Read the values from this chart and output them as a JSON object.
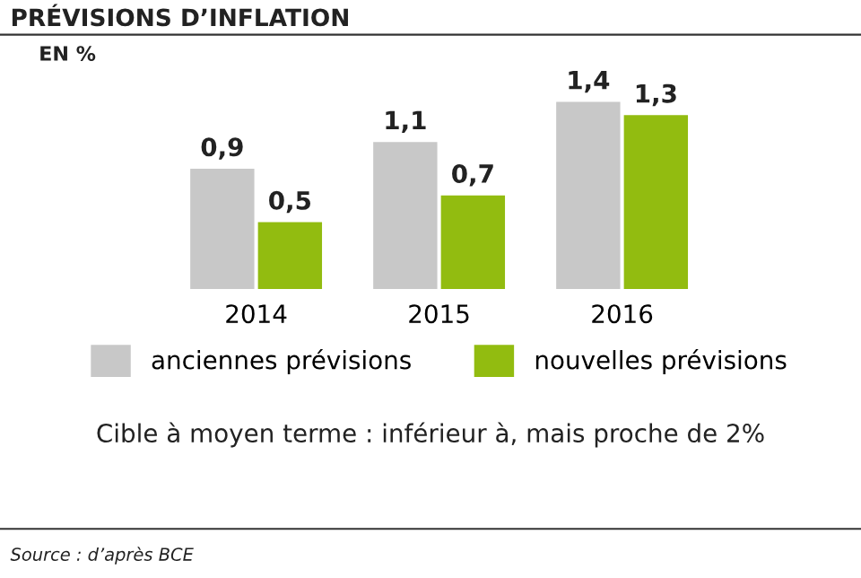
{
  "chart_data": {
    "type": "bar",
    "title": "PRÉVISIONS D’INFLATION",
    "subtitle": "EN %",
    "categories": [
      "2014",
      "2015",
      "2016"
    ],
    "series": [
      {
        "name": "anciennes prévisions",
        "color": "#c8c8c8",
        "values": [
          0.9,
          1.1,
          1.4
        ],
        "value_labels": [
          "0,9",
          "1,1",
          "1,4"
        ]
      },
      {
        "name": "nouvelles prévisions",
        "color": "#92bc10",
        "values": [
          0.5,
          0.7,
          1.3
        ],
        "value_labels": [
          "0,5",
          "0,7",
          "1,3"
        ]
      }
    ],
    "legend": "bottom",
    "annotations": [
      "Cible à moyen terme : inférieur à, mais proche de 2%",
      "Source : d’après BCE"
    ]
  }
}
